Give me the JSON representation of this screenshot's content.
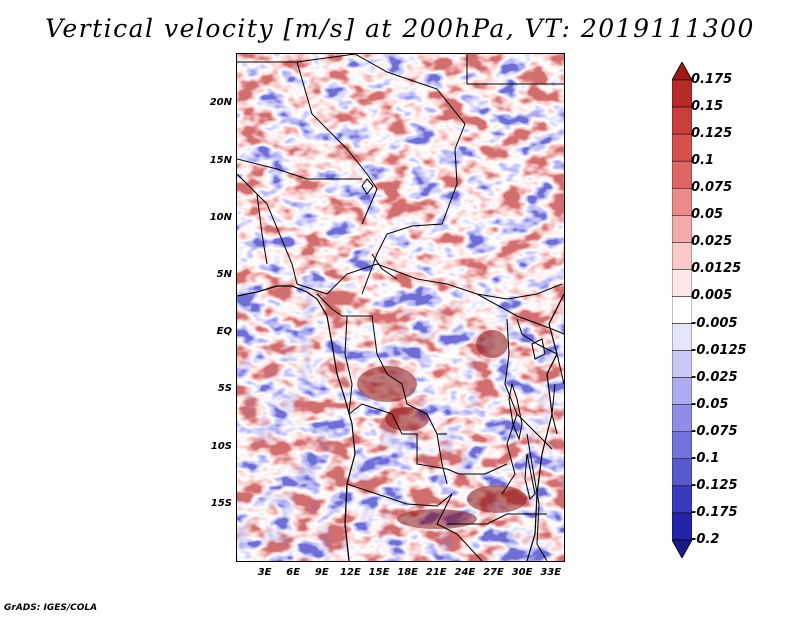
{
  "title": "Vertical velocity [m/s] at 200hPa, VT: 2019111300",
  "footer": "GrADS: IGES/COLA",
  "map": {
    "lat_labels": [
      "20N",
      "15N",
      "10N",
      "5N",
      "EQ",
      "5S",
      "10S",
      "15S"
    ],
    "lat_values": [
      20,
      15,
      10,
      5,
      0,
      -5,
      -10,
      -15
    ],
    "lon_labels": [
      "3E",
      "6E",
      "9E",
      "12E",
      "15E",
      "18E",
      "21E",
      "24E",
      "27E",
      "30E",
      "33E"
    ],
    "lon_values": [
      3,
      6,
      9,
      12,
      15,
      18,
      21,
      24,
      27,
      30,
      33
    ],
    "lat_range": [
      -20,
      24.5
    ],
    "lon_range": [
      0,
      34.5
    ]
  },
  "colorbar": {
    "levels": [
      "0.175",
      "0.15",
      "0.125",
      "0.1",
      "0.075",
      "0.05",
      "0.025",
      "0.0125",
      "0.005",
      "-0.005",
      "-0.0125",
      "-0.025",
      "-0.05",
      "-0.075",
      "-0.1",
      "-0.125",
      "-0.175",
      "-0.2"
    ],
    "colors": [
      "#a01818",
      "#b82a2a",
      "#cc3d3d",
      "#d95050",
      "#e06565",
      "#ea8a8a",
      "#f2aaaa",
      "#f8caca",
      "#fde8e8",
      "#ffffff",
      "#e4e4fb",
      "#c8c8f5",
      "#ababef",
      "#8e8ee6",
      "#7272dc",
      "#5858cf",
      "#3a3ac0",
      "#2424a8",
      "#1a1a8a"
    ]
  }
}
